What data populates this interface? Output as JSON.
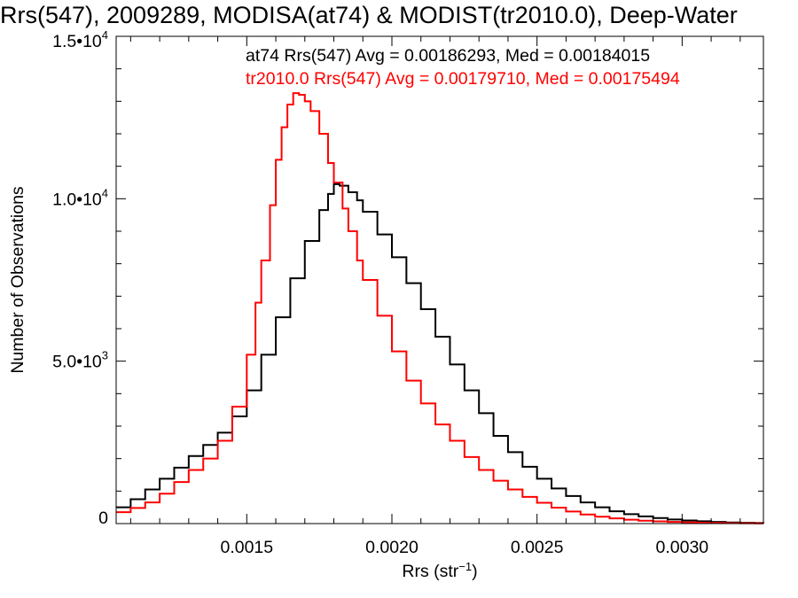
{
  "chart_data": {
    "type": "line",
    "title": "Rrs(547), 2009289, MODISA(at74) & MODIST(tr2010.0), Deep-Water",
    "xlabel_main": "Rrs (str",
    "xlabel_sup": "−1",
    "xlabel_close": ")",
    "ylabel": "Number of Observations",
    "xlim": [
      0.00105,
      0.00328
    ],
    "ylim": [
      0,
      15000
    ],
    "x_ticks": [
      {
        "value": 0.0015,
        "label": "0.0015"
      },
      {
        "value": 0.002,
        "label": "0.0020"
      },
      {
        "value": 0.0025,
        "label": "0.0025"
      },
      {
        "value": 0.003,
        "label": "0.0030"
      }
    ],
    "y_ticks": [
      {
        "value": 0,
        "label": "0",
        "sup": ""
      },
      {
        "value": 5000,
        "label": "5.0•10",
        "sup": "3"
      },
      {
        "value": 10000,
        "label": "1.0•10",
        "sup": "4"
      },
      {
        "value": 15000,
        "label": "1.5•10",
        "sup": "4"
      }
    ],
    "annotations": [
      {
        "text": "at74 Rrs(547) Avg = 0.00186293, Med = 0.00184015",
        "color": "#000000"
      },
      {
        "text": "tr2010.0 Rrs(547) Avg = 0.00179710, Med = 0.00175494",
        "color": "#ff0000"
      }
    ],
    "series": [
      {
        "color": "#000000",
        "points": [
          [
            0.00105,
            500
          ],
          [
            0.0011,
            750
          ],
          [
            0.00115,
            1050
          ],
          [
            0.0012,
            1380
          ],
          [
            0.00125,
            1720
          ],
          [
            0.0013,
            2080
          ],
          [
            0.00135,
            2420
          ],
          [
            0.0014,
            2800
          ],
          [
            0.00145,
            3300
          ],
          [
            0.0015,
            4100
          ],
          [
            0.00155,
            5200
          ],
          [
            0.0016,
            6350
          ],
          [
            0.00165,
            7550
          ],
          [
            0.0017,
            8700
          ],
          [
            0.00175,
            9650
          ],
          [
            0.00178,
            10150
          ],
          [
            0.0018,
            10450
          ],
          [
            0.00182,
            10400
          ],
          [
            0.00185,
            10200
          ],
          [
            0.00188,
            9950
          ],
          [
            0.0019,
            9600
          ],
          [
            0.00195,
            8900
          ],
          [
            0.002,
            8200
          ],
          [
            0.00205,
            7400
          ],
          [
            0.0021,
            6600
          ],
          [
            0.00215,
            5750
          ],
          [
            0.0022,
            4900
          ],
          [
            0.00225,
            4100
          ],
          [
            0.0023,
            3400
          ],
          [
            0.00235,
            2700
          ],
          [
            0.0024,
            2200
          ],
          [
            0.00245,
            1750
          ],
          [
            0.0025,
            1380
          ],
          [
            0.00255,
            1080
          ],
          [
            0.0026,
            850
          ],
          [
            0.00265,
            650
          ],
          [
            0.0027,
            500
          ],
          [
            0.00275,
            380
          ],
          [
            0.0028,
            290
          ],
          [
            0.00285,
            220
          ],
          [
            0.0029,
            170
          ],
          [
            0.00295,
            125
          ],
          [
            0.003,
            95
          ],
          [
            0.00305,
            70
          ],
          [
            0.0031,
            50
          ],
          [
            0.00315,
            35
          ],
          [
            0.0032,
            25
          ],
          [
            0.00325,
            18
          ],
          [
            0.00328,
            15
          ]
        ]
      },
      {
        "color": "#ff0000",
        "points": [
          [
            0.00105,
            350
          ],
          [
            0.0011,
            480
          ],
          [
            0.00115,
            650
          ],
          [
            0.0012,
            920
          ],
          [
            0.00125,
            1280
          ],
          [
            0.0013,
            1650
          ],
          [
            0.00135,
            2000
          ],
          [
            0.0014,
            2550
          ],
          [
            0.00145,
            3600
          ],
          [
            0.0015,
            5200
          ],
          [
            0.00153,
            6800
          ],
          [
            0.00155,
            8100
          ],
          [
            0.00158,
            9800
          ],
          [
            0.0016,
            11200
          ],
          [
            0.00162,
            12200
          ],
          [
            0.00164,
            12900
          ],
          [
            0.00166,
            13250
          ],
          [
            0.00168,
            13200
          ],
          [
            0.0017,
            13000
          ],
          [
            0.00172,
            12700
          ],
          [
            0.00175,
            12000
          ],
          [
            0.00178,
            11100
          ],
          [
            0.0018,
            10500
          ],
          [
            0.00183,
            9700
          ],
          [
            0.00185,
            9000
          ],
          [
            0.00188,
            8100
          ],
          [
            0.0019,
            7500
          ],
          [
            0.00195,
            6400
          ],
          [
            0.002,
            5300
          ],
          [
            0.00205,
            4400
          ],
          [
            0.0021,
            3700
          ],
          [
            0.00215,
            3050
          ],
          [
            0.0022,
            2550
          ],
          [
            0.00225,
            2050
          ],
          [
            0.0023,
            1650
          ],
          [
            0.00235,
            1320
          ],
          [
            0.0024,
            1050
          ],
          [
            0.00245,
            820
          ],
          [
            0.0025,
            640
          ],
          [
            0.00255,
            490
          ],
          [
            0.0026,
            370
          ],
          [
            0.00265,
            280
          ],
          [
            0.0027,
            210
          ],
          [
            0.00275,
            160
          ],
          [
            0.0028,
            120
          ],
          [
            0.00285,
            90
          ],
          [
            0.0029,
            68
          ],
          [
            0.00295,
            50
          ],
          [
            0.003,
            38
          ],
          [
            0.00305,
            28
          ],
          [
            0.0031,
            20
          ],
          [
            0.00315,
            15
          ],
          [
            0.0032,
            11
          ],
          [
            0.00325,
            8
          ],
          [
            0.00328,
            6
          ]
        ]
      }
    ]
  }
}
